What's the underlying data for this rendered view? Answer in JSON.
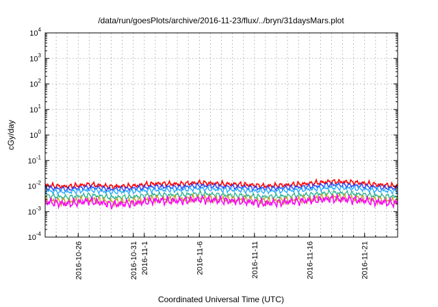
{
  "chart_data": {
    "type": "line",
    "title": "/data/run/goesPlots/archive/2016-11-23/flux/../bryn/31daysMars.plot",
    "xlabel": "Coordinated Universal Time (UTC)",
    "ylabel": "cGy/day",
    "yscale": "log",
    "ylim": [
      0.0001,
      10000
    ],
    "xlim": [
      "2016-10-23",
      "2016-11-24"
    ],
    "grid": true,
    "y_ticks": [
      {
        "base": "10",
        "exp": "-4",
        "value": 0.0001
      },
      {
        "base": "10",
        "exp": "-3",
        "value": 0.001
      },
      {
        "base": "10",
        "exp": "-2",
        "value": 0.01
      },
      {
        "base": "10",
        "exp": "-1",
        "value": 0.1
      },
      {
        "base": "10",
        "exp": "0",
        "value": 1
      },
      {
        "base": "10",
        "exp": "1",
        "value": 10
      },
      {
        "base": "10",
        "exp": "2",
        "value": 100
      },
      {
        "base": "10",
        "exp": "3",
        "value": 1000
      },
      {
        "base": "10",
        "exp": "4",
        "value": 10000
      }
    ],
    "x_ticks": [
      "2016-10-26",
      "2016-10-31",
      "2016-11-1",
      "2016-11-6",
      "2016-11-11",
      "2016-11-16",
      "2016-11-21"
    ],
    "x_tick_dates": [
      "2016-10-26",
      "2016-10-31",
      "2016-11-01",
      "2016-11-06",
      "2016-11-11",
      "2016-11-16",
      "2016-11-21"
    ],
    "x": [
      "2016-10-23",
      "2016-10-25",
      "2016-10-27",
      "2016-10-29",
      "2016-10-31",
      "2016-11-02",
      "2016-11-04",
      "2016-11-06",
      "2016-11-08",
      "2016-11-10",
      "2016-11-12",
      "2016-11-14",
      "2016-11-16",
      "2016-11-18",
      "2016-11-20",
      "2016-11-22",
      "2016-11-24"
    ],
    "series": [
      {
        "color": "#ff0000",
        "values": [
          0.0105,
          0.0095,
          0.0115,
          0.0095,
          0.01,
          0.0125,
          0.012,
          0.0135,
          0.012,
          0.0115,
          0.01,
          0.011,
          0.0125,
          0.015,
          0.014,
          0.0115,
          0.01
        ]
      },
      {
        "color": "#1a3cff",
        "values": [
          0.0085,
          0.0075,
          0.009,
          0.0075,
          0.008,
          0.0095,
          0.009,
          0.0105,
          0.0095,
          0.009,
          0.008,
          0.0085,
          0.0095,
          0.0115,
          0.0105,
          0.009,
          0.008
        ]
      },
      {
        "color": "#22a7ff",
        "values": [
          0.0065,
          0.0058,
          0.007,
          0.0058,
          0.0062,
          0.0072,
          0.007,
          0.008,
          0.0072,
          0.0068,
          0.0062,
          0.0066,
          0.0074,
          0.0088,
          0.008,
          0.0068,
          0.0062
        ]
      },
      {
        "color": "#20b090",
        "values": [
          0.0042,
          0.0036,
          0.0044,
          0.0036,
          0.0038,
          0.0046,
          0.0044,
          0.005,
          0.0045,
          0.0042,
          0.0038,
          0.0041,
          0.0046,
          0.0055,
          0.005,
          0.0042,
          0.0038
        ]
      },
      {
        "color": "#b8a020",
        "values": [
          0.0028,
          0.0024,
          0.003,
          0.0024,
          0.0026,
          0.0031,
          0.003,
          0.0034,
          0.0031,
          0.0029,
          0.0026,
          0.0028,
          0.0031,
          0.0037,
          0.0034,
          0.0029,
          0.0026
        ]
      },
      {
        "color": "#ff00ff",
        "values": [
          0.0024,
          0.002,
          0.0026,
          0.0019,
          0.0021,
          0.0027,
          0.0026,
          0.003,
          0.0027,
          0.0025,
          0.0021,
          0.0024,
          0.0027,
          0.0032,
          0.0029,
          0.0024,
          0.0021
        ]
      }
    ]
  }
}
